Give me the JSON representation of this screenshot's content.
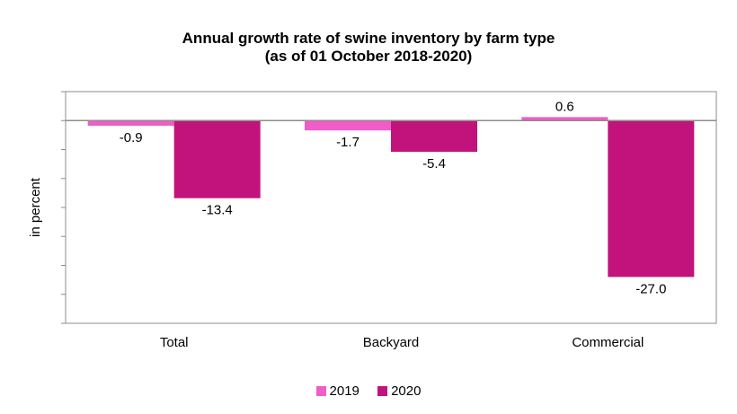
{
  "chart_data": {
    "type": "bar",
    "title": "Annual growth rate of swine inventory by farm type",
    "subtitle": "(as of 01 October 2018-2020)",
    "ylabel": "in percent",
    "xlabel": "",
    "categories": [
      "Total",
      "Backyard",
      "Commercial"
    ],
    "series": [
      {
        "name": "2019",
        "values": [
          -0.9,
          -1.7,
          0.6
        ],
        "color": "#f25cc6"
      },
      {
        "name": "2020",
        "values": [
          -13.4,
          -5.4,
          -27.0
        ],
        "color": "#c2137c"
      }
    ],
    "ylim": [
      -35,
      5
    ],
    "y_tick_step": 5,
    "data_labels": true,
    "y_tick_labels_shown": false,
    "grid": false,
    "legend_position": "bottom"
  }
}
